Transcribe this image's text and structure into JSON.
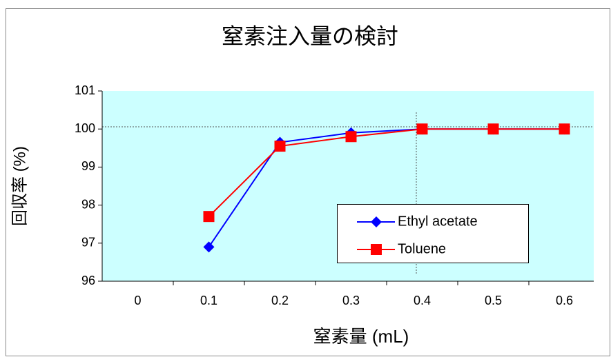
{
  "chart_data": {
    "type": "line",
    "title": "窒素注入量の検討",
    "x_label": "窒素量 (mL)",
    "y_label": "回収率 (%)",
    "categories": [
      "0",
      "0.1",
      "0.2",
      "0.3",
      "0.4",
      "0.5",
      "0.6"
    ],
    "series": [
      {
        "name": "Ethyl acetate",
        "color": "#0000ff",
        "marker": "diamond",
        "values": [
          null,
          96.9,
          99.65,
          99.9,
          100,
          100,
          100
        ]
      },
      {
        "name": "Toluene",
        "color": "#ff0000",
        "marker": "square",
        "values": [
          null,
          97.7,
          99.55,
          99.8,
          100,
          100,
          100
        ]
      }
    ],
    "ylim": [
      96,
      101
    ],
    "yticks": [
      96,
      97,
      98,
      99,
      100,
      101
    ],
    "plot_background": "#ccffff"
  }
}
